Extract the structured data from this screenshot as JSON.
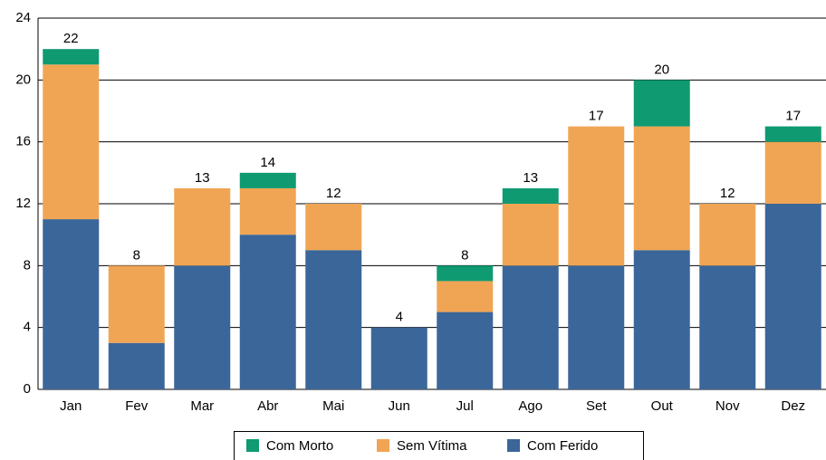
{
  "chart_data": {
    "type": "stacked_bar",
    "categories": [
      "Jan",
      "Fev",
      "Mar",
      "Abr",
      "Mai",
      "Jun",
      "Jul",
      "Ago",
      "Set",
      "Out",
      "Nov",
      "Dez"
    ],
    "series": [
      {
        "name": "Com Ferido",
        "color": "#3b6699",
        "values": [
          11,
          3,
          8,
          10,
          9,
          4,
          5,
          8,
          8,
          9,
          8,
          12
        ]
      },
      {
        "name": "Sem Vítima",
        "color": "#f0a554",
        "values": [
          10,
          5,
          5,
          3,
          3,
          0,
          2,
          4,
          9,
          8,
          4,
          4
        ]
      },
      {
        "name": "Com Morto",
        "color": "#0f9a72",
        "values": [
          1,
          0,
          0,
          1,
          0,
          0,
          1,
          1,
          0,
          3,
          0,
          1
        ]
      }
    ],
    "totals": [
      22,
      8,
      13,
      14,
      12,
      4,
      8,
      13,
      17,
      20,
      12,
      17
    ],
    "ylim": [
      0,
      24
    ],
    "yticks": [
      0,
      4,
      8,
      12,
      16,
      20,
      24
    ],
    "grid": true
  }
}
